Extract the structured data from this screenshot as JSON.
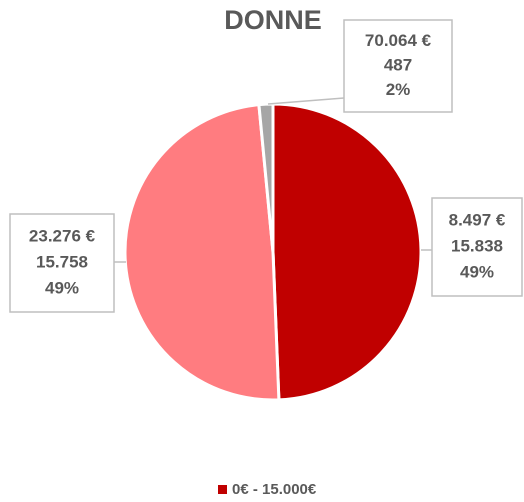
{
  "chart_data": {
    "type": "pie",
    "title": "DONNE",
    "categories": [
      "0€ - 15.000€",
      null,
      null
    ],
    "values": [
      15838,
      15758,
      487
    ],
    "value_labels": [
      "15.838",
      "15.758",
      "487"
    ],
    "amount_labels": [
      "8.497 €",
      "23.276 €",
      "70.064 €"
    ],
    "percent_labels": [
      "49%",
      "49%",
      "2%"
    ],
    "colors": [
      "#c00000",
      "#ff7c80",
      "#a6a6a6"
    ],
    "legend": "bottom"
  }
}
